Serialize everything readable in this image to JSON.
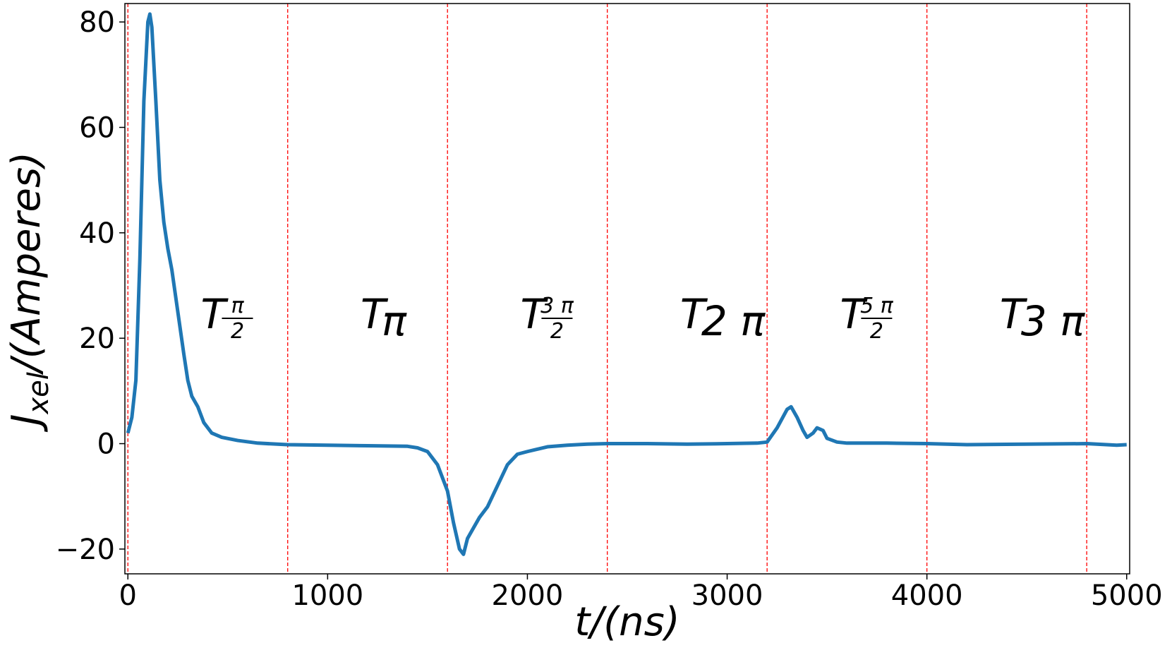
{
  "chart_data": {
    "type": "line",
    "x_label": "t/(ns)",
    "y_label": {
      "base": "J",
      "sub": "xel",
      "rest": "/(Amperes)"
    },
    "x": [
      0,
      20,
      40,
      60,
      80,
      100,
      110,
      120,
      140,
      160,
      180,
      200,
      220,
      250,
      280,
      300,
      320,
      350,
      380,
      420,
      470,
      550,
      650,
      800,
      1000,
      1200,
      1400,
      1450,
      1500,
      1550,
      1600,
      1630,
      1660,
      1680,
      1700,
      1730,
      1760,
      1800,
      1850,
      1900,
      1950,
      2000,
      2100,
      2200,
      2300,
      2400,
      2600,
      2800,
      3000,
      3150,
      3200,
      3250,
      3300,
      3320,
      3350,
      3380,
      3400,
      3430,
      3450,
      3480,
      3500,
      3550,
      3600,
      3800,
      4000,
      4200,
      4500,
      4800,
      4950,
      5000
    ],
    "values": [
      2,
      5,
      12,
      35,
      65,
      80,
      81.5,
      79,
      65,
      50,
      42,
      37,
      33,
      25,
      17,
      12,
      9,
      7,
      4,
      2,
      1.2,
      0.6,
      0.1,
      -0.2,
      -0.3,
      -0.4,
      -0.5,
      -0.8,
      -1.5,
      -4,
      -9,
      -15,
      -20,
      -21,
      -18,
      -16,
      -14,
      -12,
      -8,
      -4,
      -2,
      -1.5,
      -0.6,
      -0.3,
      -0.1,
      0,
      0,
      -0.1,
      0,
      0.1,
      0.3,
      3,
      6.5,
      7,
      5,
      2.5,
      1.2,
      2,
      3,
      2.5,
      1,
      0.3,
      0.1,
      0.1,
      0,
      -0.2,
      -0.1,
      0,
      -0.3,
      -0.2
    ],
    "color": "#1f77b4",
    "xlim": [
      -15,
      5015
    ],
    "ylim": [
      -24.7,
      83.5
    ],
    "xticks": [
      0,
      1000,
      2000,
      3000,
      4000,
      5000
    ],
    "yticks": [
      {
        "value": -20,
        "label": "−20"
      },
      0,
      20,
      40,
      60,
      80
    ],
    "vlines": [
      0,
      800,
      1600,
      2400,
      3200,
      4000,
      4800
    ],
    "vline_color": "#ff0000",
    "annotations": [
      {
        "base": "T",
        "num": "π",
        "den": "2"
      },
      {
        "base": "T",
        "sub": "π"
      },
      {
        "base": "T",
        "num": "3 π",
        "den": "2"
      },
      {
        "base": "T",
        "sub": "2 π"
      },
      {
        "base": "T",
        "num": "5 π",
        "den": "2"
      },
      {
        "base": "T",
        "sub": "3 π"
      }
    ]
  }
}
